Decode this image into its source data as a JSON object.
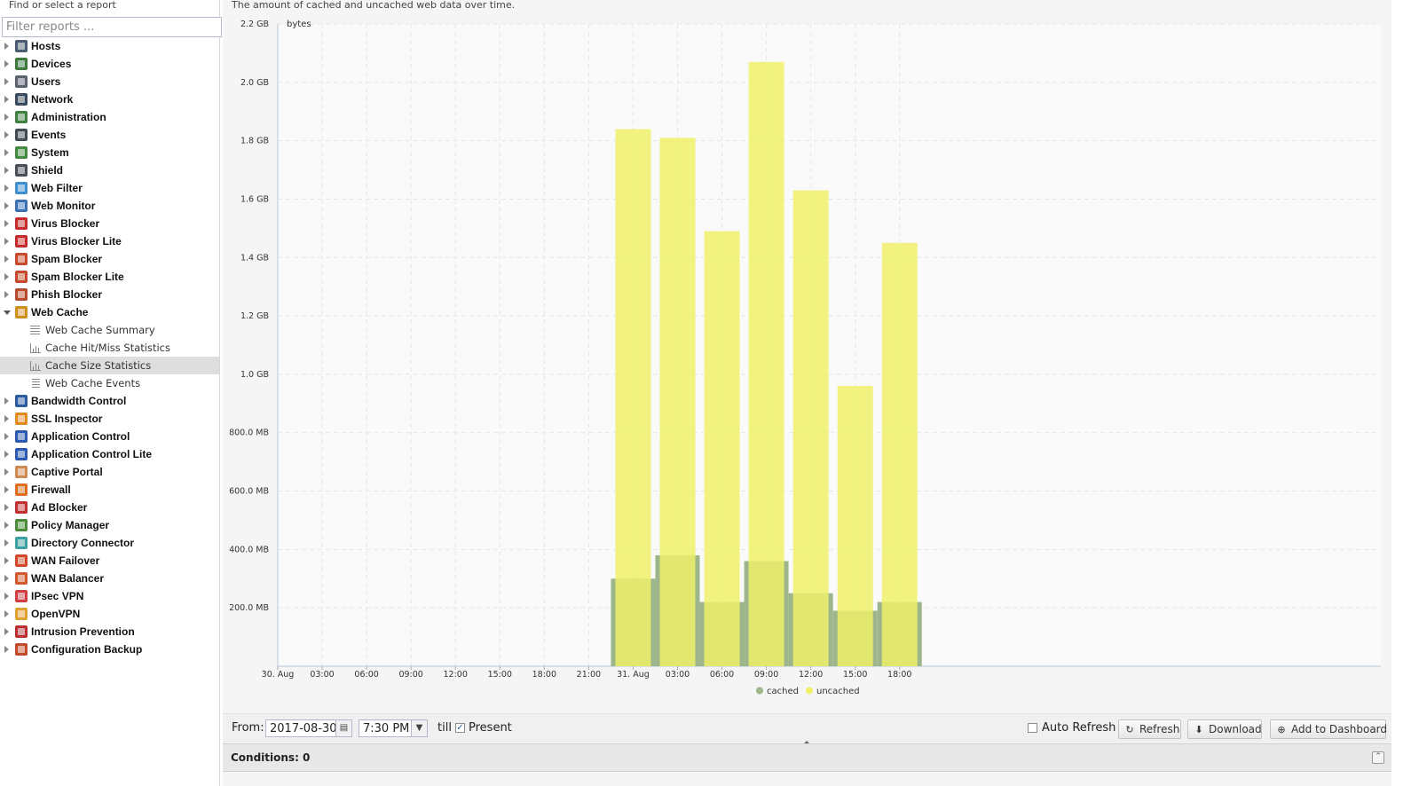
{
  "sidebar": {
    "title": "Find or select a report",
    "filter_placeholder": "Filter reports ...",
    "items": [
      {
        "label": "Hosts",
        "color": "#4a5a70"
      },
      {
        "label": "Devices",
        "color": "#3d7a3d"
      },
      {
        "label": "Users",
        "color": "#5a6270"
      },
      {
        "label": "Network",
        "color": "#3a4a5e"
      },
      {
        "label": "Administration",
        "color": "#3f7f3f"
      },
      {
        "label": "Events",
        "color": "#444c55"
      },
      {
        "label": "System",
        "color": "#3f8a3f"
      },
      {
        "label": "Shield",
        "color": "#4a4f57"
      },
      {
        "label": "Web Filter",
        "color": "#3d8fcf"
      },
      {
        "label": "Web Monitor",
        "color": "#3b6fb5"
      },
      {
        "label": "Virus Blocker",
        "color": "#c62b2b"
      },
      {
        "label": "Virus Blocker Lite",
        "color": "#c62b2b"
      },
      {
        "label": "Spam Blocker",
        "color": "#c6492b"
      },
      {
        "label": "Spam Blocker Lite",
        "color": "#c6492b"
      },
      {
        "label": "Phish Blocker",
        "color": "#b84a2e"
      },
      {
        "label": "Web Cache",
        "color": "#d09020",
        "expanded": true,
        "children": [
          {
            "label": "Web Cache Summary",
            "icon": "text-report-icon"
          },
          {
            "label": "Cache Hit/Miss Statistics",
            "icon": "bar-chart-report-icon"
          },
          {
            "label": "Cache Size Statistics",
            "icon": "bar-chart-report-icon",
            "selected": true
          },
          {
            "label": "Web Cache Events",
            "icon": "event-list-report-icon"
          }
        ]
      },
      {
        "label": "Bandwidth Control",
        "color": "#2b5aa0"
      },
      {
        "label": "SSL Inspector",
        "color": "#e08a20"
      },
      {
        "label": "Application Control",
        "color": "#2b5ab0"
      },
      {
        "label": "Application Control Lite",
        "color": "#2b5ab0"
      },
      {
        "label": "Captive Portal",
        "color": "#d08a50"
      },
      {
        "label": "Firewall",
        "color": "#e07020"
      },
      {
        "label": "Ad Blocker",
        "color": "#c03030"
      },
      {
        "label": "Policy Manager",
        "color": "#4a8a3a"
      },
      {
        "label": "Directory Connector",
        "color": "#3aa0a0"
      },
      {
        "label": "WAN Failover",
        "color": "#d04a2a"
      },
      {
        "label": "WAN Balancer",
        "color": "#d05a2a"
      },
      {
        "label": "IPsec VPN",
        "color": "#d04040"
      },
      {
        "label": "OpenVPN",
        "color": "#e0a030"
      },
      {
        "label": "Intrusion Prevention",
        "color": "#b83030"
      },
      {
        "label": "Configuration Backup",
        "color": "#c04a2a"
      }
    ]
  },
  "report": {
    "description": "The amount of cached and uncached web data over time."
  },
  "chart_data": {
    "type": "bar",
    "stacked": false,
    "ylabel": "bytes",
    "ylim": [
      0,
      2.2
    ],
    "y_unit": "GB",
    "y_ticks": [
      {
        "value": 0.2,
        "label": "200.0 MB"
      },
      {
        "value": 0.4,
        "label": "400.0 MB"
      },
      {
        "value": 0.6,
        "label": "600.0 MB"
      },
      {
        "value": 0.8,
        "label": "800.0 MB"
      },
      {
        "value": 1.0,
        "label": "1.0 GB"
      },
      {
        "value": 1.2,
        "label": "1.2 GB"
      },
      {
        "value": 1.4,
        "label": "1.4 GB"
      },
      {
        "value": 1.6,
        "label": "1.6 GB"
      },
      {
        "value": 1.8,
        "label": "1.8 GB"
      },
      {
        "value": 2.0,
        "label": "2.0 GB"
      },
      {
        "value": 2.2,
        "label": "2.2 GB"
      }
    ],
    "x_unit": "hours since 30. Aug 00:00",
    "xlim": [
      0,
      74.5
    ],
    "x_ticks": [
      {
        "value": 0,
        "label": "30. Aug"
      },
      {
        "value": 3,
        "label": "03:00"
      },
      {
        "value": 6,
        "label": "06:00"
      },
      {
        "value": 9,
        "label": "09:00"
      },
      {
        "value": 12,
        "label": "12:00"
      },
      {
        "value": 15,
        "label": "15:00"
      },
      {
        "value": 18,
        "label": "18:00"
      },
      {
        "value": 21,
        "label": "21:00"
      },
      {
        "value": 24,
        "label": "31. Aug"
      },
      {
        "value": 27,
        "label": "03:00"
      },
      {
        "value": 30,
        "label": "06:00"
      },
      {
        "value": 33,
        "label": "09:00"
      },
      {
        "value": 36,
        "label": "12:00"
      },
      {
        "value": 39,
        "label": "15:00"
      },
      {
        "value": 42,
        "label": "18:00"
      }
    ],
    "x": [
      24,
      27,
      30,
      33,
      36,
      39,
      42
    ],
    "series": [
      {
        "name": "cached",
        "color": "#9db58a",
        "values": [
          0.3,
          0.38,
          0.22,
          0.36,
          0.25,
          0.19,
          0.22
        ]
      },
      {
        "name": "uncached",
        "color": "#eef06a",
        "values": [
          1.84,
          1.81,
          1.49,
          2.07,
          1.63,
          0.96,
          1.45
        ]
      }
    ],
    "legend": "bottom-center",
    "grid": true
  },
  "toolbar": {
    "from_label": "From:",
    "date_value": "2017-08-30",
    "time_value": "7:30 PM",
    "till_label": "till",
    "present_label": "Present",
    "present_checked": true,
    "auto_refresh_label": "Auto Refresh",
    "auto_refresh_checked": false,
    "refresh_label": "Refresh",
    "download_label": "Download",
    "add_dashboard_label": "Add to Dashboard"
  },
  "conditions": {
    "label": "Conditions: 0"
  }
}
